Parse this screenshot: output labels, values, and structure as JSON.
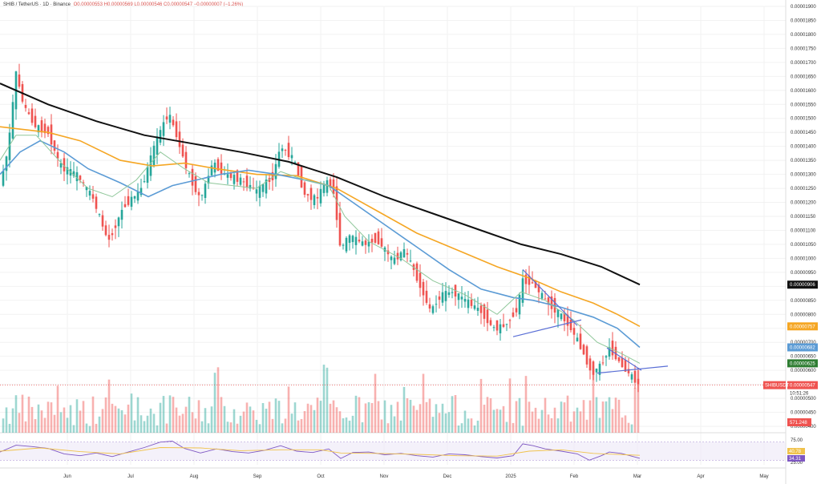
{
  "header": {
    "symbol": "SHIB / TetherUS · 1D · Binance",
    "ohlc": "O0.00000553  H0.00000569  L0.00000546  C0.00000547  −0.00000007 (−1.26%)"
  },
  "colors": {
    "bg": "#ffffff",
    "grid": "#f2f2f2",
    "up": "#26a69a",
    "down": "#ef5350",
    "ma200": "#111111",
    "ma100": "#f5a623",
    "ma50": "#5b9bd5",
    "ma20": "#8fc79a",
    "trendline": "#5a6fd6",
    "rsi": "#7e57c2",
    "rsi_ma": "#f0c24b",
    "rsi_band": "#ede7f6"
  },
  "chart_data": [
    {
      "type": "candlestick",
      "ylim": [
        4e-06,
        1.9e-05
      ],
      "y_ticks": [
        "0.00001900",
        "0.00001850",
        "0.00001800",
        "0.00001750",
        "0.00001700",
        "0.00001650",
        "0.00001600",
        "0.00001550",
        "0.00001500",
        "0.00001450",
        "0.00001400",
        "0.00001350",
        "0.00001300",
        "0.00001250",
        "0.00001200",
        "0.00001150",
        "0.00001100",
        "0.00001050",
        "0.00001000",
        "0.00000950",
        "0.00000900",
        "0.00000850",
        "0.00000800",
        "0.00000750",
        "0.00000700",
        "0.00000650",
        "0.00000600",
        "0.00000550",
        "0.00000500",
        "0.00000450",
        "0.00000400"
      ],
      "x_ticks": [
        "Jun",
        "Jul",
        "Aug",
        "Sep",
        "Oct",
        "Nov",
        "Dec",
        "2025",
        "Feb",
        "Mar",
        "Apr",
        "May"
      ],
      "last_close": 5.47e-06,
      "series": [
        {
          "name": "MA 200",
          "key": "ma200",
          "tag": "0.00000906",
          "points": [
            [
              0,
              1.625e-05
            ],
            [
              60,
              1.55e-05
            ],
            [
              120,
              1.49e-05
            ],
            [
              180,
              1.44e-05
            ],
            [
              240,
              1.41e-05
            ],
            [
              300,
              1.38e-05
            ],
            [
              360,
              1.345e-05
            ],
            [
              420,
              1.29e-05
            ],
            [
              480,
              1.22e-05
            ],
            [
              540,
              1.16e-05
            ],
            [
              600,
              1.1e-05
            ],
            [
              650,
              1.05e-05
            ],
            [
              700,
              1.015e-05
            ],
            [
              750,
              9.7e-06
            ],
            [
              798,
              9.06e-06
            ]
          ]
        },
        {
          "name": "MA 100",
          "key": "ma100",
          "tag": "0.00000757",
          "points": [
            [
              0,
              1.47e-05
            ],
            [
              30,
              1.46e-05
            ],
            [
              60,
              1.45e-05
            ],
            [
              100,
              1.42e-05
            ],
            [
              150,
              1.35e-05
            ],
            [
              190,
              1.33e-05
            ],
            [
              230,
              1.34e-05
            ],
            [
              270,
              1.32e-05
            ],
            [
              320,
              1.3e-05
            ],
            [
              370,
              1.295e-05
            ],
            [
              420,
              1.25e-05
            ],
            [
              470,
              1.17e-05
            ],
            [
              520,
              1.09e-05
            ],
            [
              570,
              1.03e-05
            ],
            [
              620,
              9.7e-06
            ],
            [
              660,
              9.3e-06
            ],
            [
              700,
              8.8e-06
            ],
            [
              740,
              8.4e-06
            ],
            [
              770,
              8e-06
            ],
            [
              798,
              7.57e-06
            ]
          ]
        },
        {
          "name": "MA 50",
          "key": "ma50",
          "tag": "0.00000682",
          "points": [
            [
              0,
              1.3e-05
            ],
            [
              25,
              1.38e-05
            ],
            [
              50,
              1.42e-05
            ],
            [
              80,
              1.38e-05
            ],
            [
              110,
              1.32e-05
            ],
            [
              150,
              1.27e-05
            ],
            [
              185,
              1.22e-05
            ],
            [
              215,
              1.26e-05
            ],
            [
              245,
              1.28e-05
            ],
            [
              275,
              1.3e-05
            ],
            [
              310,
              1.315e-05
            ],
            [
              345,
              1.3e-05
            ],
            [
              380,
              1.28e-05
            ],
            [
              410,
              1.26e-05
            ],
            [
              440,
              1.2e-05
            ],
            [
              480,
              1.12e-05
            ],
            [
              520,
              1.04e-05
            ],
            [
              560,
              9.6e-06
            ],
            [
              600,
              8.9e-06
            ],
            [
              640,
              8.6e-06
            ],
            [
              665,
              8.5e-06
            ],
            [
              700,
              8.25e-06
            ],
            [
              740,
              7.9e-06
            ],
            [
              770,
              7.5e-06
            ],
            [
              798,
              6.82e-06
            ]
          ]
        },
        {
          "name": "MA 20",
          "key": "ma20",
          "tag": "0.00000625",
          "points": [
            [
              0,
              1.35e-05
            ],
            [
              20,
              1.44e-05
            ],
            [
              45,
              1.44e-05
            ],
            [
              80,
              1.33e-05
            ],
            [
              110,
              1.25e-05
            ],
            [
              140,
              1.22e-05
            ],
            [
              170,
              1.28e-05
            ],
            [
              200,
              1.38e-05
            ],
            [
              230,
              1.32e-05
            ],
            [
              260,
              1.27e-05
            ],
            [
              290,
              1.26e-05
            ],
            [
              320,
              1.25e-05
            ],
            [
              350,
              1.31e-05
            ],
            [
              380,
              1.28e-05
            ],
            [
              410,
              1.26e-05
            ],
            [
              430,
              1.15e-05
            ],
            [
              460,
              1.06e-05
            ],
            [
              500,
              1e-05
            ],
            [
              540,
              9.2e-06
            ],
            [
              580,
              8.7e-06
            ],
            [
              620,
              8e-06
            ],
            [
              650,
              8.8e-06
            ],
            [
              680,
              8.5e-06
            ],
            [
              715,
              7.8e-06
            ],
            [
              745,
              7e-06
            ],
            [
              775,
              6.6e-06
            ],
            [
              798,
              6.25e-06
            ]
          ]
        },
        {
          "name": "Price",
          "key": "price",
          "tag": "0.00000547",
          "points": [
            [
              0,
              1.26e-05
            ],
            [
              10,
              1.39e-05
            ],
            [
              20,
              1.66e-05
            ],
            [
              30,
              1.54e-05
            ],
            [
              45,
              1.47e-05
            ],
            [
              60,
              1.45e-05
            ],
            [
              75,
              1.33e-05
            ],
            [
              95,
              1.3e-05
            ],
            [
              115,
              1.22e-05
            ],
            [
              135,
              1.06e-05
            ],
            [
              155,
              1.19e-05
            ],
            [
              175,
              1.24e-05
            ],
            [
              195,
              1.42e-05
            ],
            [
              210,
              1.52e-05
            ],
            [
              220,
              1.44e-05
            ],
            [
              235,
              1.3e-05
            ],
            [
              250,
              1.21e-05
            ],
            [
              265,
              1.34e-05
            ],
            [
              280,
              1.3e-05
            ],
            [
              300,
              1.28e-05
            ],
            [
              320,
              1.24e-05
            ],
            [
              340,
              1.29e-05
            ],
            [
              350,
              1.4e-05
            ],
            [
              365,
              1.36e-05
            ],
            [
              380,
              1.23e-05
            ],
            [
              395,
              1.21e-05
            ],
            [
              405,
              1.27e-05
            ],
            [
              415,
              1.26e-05
            ],
            [
              425,
              1.03e-05
            ],
            [
              435,
              1.08e-05
            ],
            [
              455,
              1.05e-05
            ],
            [
              470,
              1.07e-05
            ],
            [
              490,
              9.9e-06
            ],
            [
              505,
              1.03e-05
            ],
            [
              520,
              9.3e-06
            ],
            [
              537,
              8.1e-06
            ],
            [
              550,
              8.7e-06
            ],
            [
              565,
              8.8e-06
            ],
            [
              580,
              8.5e-06
            ],
            [
              600,
              8.1e-06
            ],
            [
              615,
              7.5e-06
            ],
            [
              630,
              7.6e-06
            ],
            [
              645,
              8.2e-06
            ],
            [
              652,
              9.2e-06
            ],
            [
              665,
              9.1e-06
            ],
            [
              680,
              8.5e-06
            ],
            [
              695,
              8.1e-06
            ],
            [
              710,
              7.6e-06
            ],
            [
              725,
              6.8e-06
            ],
            [
              738,
              5.9e-06
            ],
            [
              750,
              6.2e-06
            ],
            [
              760,
              6.8e-06
            ],
            [
              775,
              6.2e-06
            ],
            [
              790,
              5.7e-06
            ],
            [
              798,
              5.47e-06
            ]
          ]
        }
      ],
      "annotations": [
        {
          "name": "triangle-upper-line",
          "from": [
            652,
            9.6e-06
          ],
          "to": [
            720,
            7.6e-06
          ]
        },
        {
          "name": "triangle-lower-line",
          "from": [
            640,
            7.2e-06
          ],
          "to": [
            725,
            7.8e-06
          ]
        },
        {
          "name": "wedge-upper-line",
          "from": [
            757,
            6.8e-06
          ],
          "to": [
            800,
            6e-06
          ]
        },
        {
          "name": "wedge-lower-line",
          "from": [
            745,
            5.9e-06
          ],
          "to": [
            833,
            6.15e-06
          ]
        }
      ],
      "volume_tag": "571.248",
      "symbol_tag": "SHIBUSDT",
      "countdown_tag": "10:51:26"
    },
    {
      "type": "line",
      "name": "RSI",
      "ylim": [
        20,
        80
      ],
      "y_ticks": [
        "75.00",
        "25.00"
      ],
      "band": [
        30,
        70
      ],
      "value_tags": [
        "40.78",
        "34.31"
      ],
      "series": [
        {
          "name": "RSI",
          "points": [
            [
              0,
              48
            ],
            [
              20,
              63
            ],
            [
              40,
              60
            ],
            [
              60,
              56
            ],
            [
              80,
              44
            ],
            [
              100,
              40
            ],
            [
              120,
              46
            ],
            [
              140,
              38
            ],
            [
              160,
              48
            ],
            [
              180,
              58
            ],
            [
              200,
              70
            ],
            [
              215,
              72
            ],
            [
              230,
              56
            ],
            [
              250,
              46
            ],
            [
              270,
              55
            ],
            [
              290,
              49
            ],
            [
              310,
              46
            ],
            [
              330,
              52
            ],
            [
              350,
              62
            ],
            [
              370,
              50
            ],
            [
              390,
              47
            ],
            [
              410,
              55
            ],
            [
              425,
              34
            ],
            [
              440,
              47
            ],
            [
              460,
              48
            ],
            [
              480,
              42
            ],
            [
              500,
              45
            ],
            [
              520,
              40
            ],
            [
              540,
              37
            ],
            [
              560,
              44
            ],
            [
              580,
              42
            ],
            [
              600,
              38
            ],
            [
              620,
              35
            ],
            [
              640,
              40
            ],
            [
              652,
              66
            ],
            [
              665,
              62
            ],
            [
              680,
              55
            ],
            [
              700,
              50
            ],
            [
              720,
              44
            ],
            [
              735,
              30
            ],
            [
              750,
              40
            ],
            [
              760,
              48
            ],
            [
              775,
              45
            ],
            [
              790,
              38
            ],
            [
              798,
              34.31
            ]
          ]
        },
        {
          "name": "RSI MA",
          "points": [
            [
              0,
              50
            ],
            [
              50,
              57
            ],
            [
              100,
              49
            ],
            [
              150,
              44
            ],
            [
              200,
              58
            ],
            [
              250,
              57
            ],
            [
              300,
              51
            ],
            [
              350,
              53
            ],
            [
              400,
              53
            ],
            [
              425,
              46
            ],
            [
              470,
              45
            ],
            [
              520,
              43
            ],
            [
              570,
              40
            ],
            [
              620,
              39
            ],
            [
              660,
              50
            ],
            [
              700,
              53
            ],
            [
              740,
              45
            ],
            [
              780,
              42
            ],
            [
              798,
              40.78
            ]
          ]
        }
      ]
    }
  ]
}
